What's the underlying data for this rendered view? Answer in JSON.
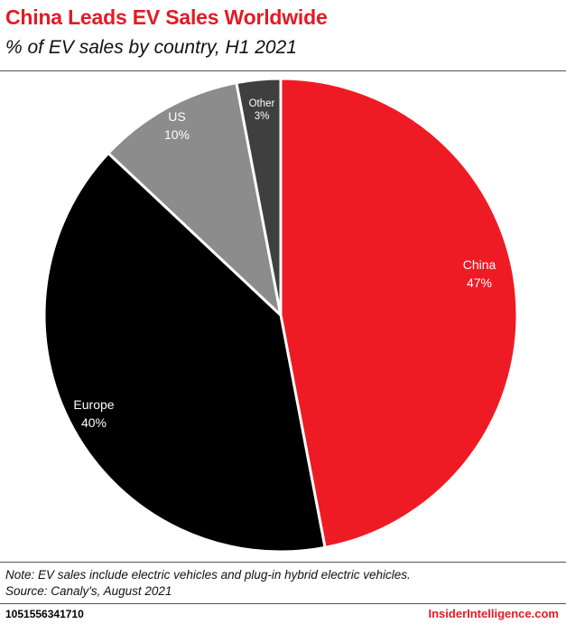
{
  "header": {
    "title": "China Leads EV Sales Worldwide",
    "subtitle": "% of EV sales by country, H1 2021"
  },
  "footer": {
    "note": "Note: EV sales include electric vehicles and plug-in hybrid electric vehicles.",
    "source": "Source: Canaly's, August 2021",
    "chart_id": "1051556341710",
    "brand": "InsiderIntelligence.com"
  },
  "colors": {
    "title": "#e21b23",
    "china": "#ef1b24",
    "europe": "#000000",
    "us": "#8c8c8c",
    "other": "#3f3f3f"
  },
  "chart_data": {
    "type": "pie",
    "title": "China Leads EV Sales Worldwide",
    "subtitle": "% of EV sales by country, H1 2021",
    "unit": "%",
    "start_angle_deg": 0,
    "direction": "clockwise",
    "slices": [
      {
        "label": "China",
        "value": 47,
        "display": "47%",
        "color": "#ef1b24"
      },
      {
        "label": "Europe",
        "value": 40,
        "display": "40%",
        "color": "#000000"
      },
      {
        "label": "US",
        "value": 10,
        "display": "10%",
        "color": "#8c8c8c"
      },
      {
        "label": "Other",
        "value": 3,
        "display": "3%",
        "color": "#3f3f3f"
      }
    ]
  }
}
